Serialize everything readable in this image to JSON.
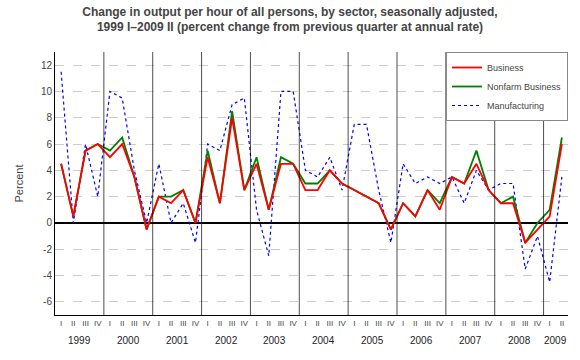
{
  "chart_data": {
    "type": "line",
    "title": "Change in output per hour of all persons, by sector, seasonally adjusted,\n1999 I–2009 II (percent change from previous quarter at annual rate)",
    "ylabel": "Percent",
    "categories": [
      "I",
      "II",
      "III",
      "IV",
      "I",
      "II",
      "III",
      "IV",
      "I",
      "II",
      "III",
      "IV",
      "I",
      "II",
      "III",
      "IV",
      "I",
      "II",
      "III",
      "IV",
      "I",
      "II",
      "III",
      "IV",
      "I",
      "II",
      "III",
      "IV",
      "I",
      "II",
      "III",
      "IV",
      "I",
      "II",
      "III",
      "IV",
      "I",
      "II",
      "III",
      "IV",
      "I",
      "II"
    ],
    "series": [
      {
        "name": "Business",
        "color": "#ff0000",
        "line_style": "solid",
        "values": [
          4.5,
          0.5,
          5.5,
          6.0,
          5.0,
          6.0,
          3.5,
          -0.5,
          2.0,
          1.5,
          2.5,
          0.0,
          5.0,
          1.5,
          8.0,
          2.5,
          4.5,
          1.0,
          4.5,
          4.5,
          2.5,
          2.5,
          4.0,
          3.0,
          2.5,
          2.0,
          1.5,
          -0.5,
          1.5,
          0.5,
          2.5,
          1.0,
          3.5,
          3.0,
          4.5,
          2.5,
          1.5,
          1.5,
          -1.5,
          -0.5,
          0.5,
          6.0
        ]
      },
      {
        "name": "Nonfarm Business",
        "color": "#008000",
        "line_style": "solid",
        "values": [
          4.5,
          0.5,
          5.5,
          6.0,
          5.5,
          6.5,
          3.5,
          -0.5,
          2.0,
          2.0,
          2.5,
          0.0,
          5.5,
          1.5,
          8.5,
          2.5,
          5.0,
          1.0,
          5.0,
          4.5,
          3.0,
          3.0,
          4.0,
          3.0,
          2.5,
          2.0,
          1.5,
          -0.5,
          1.5,
          0.5,
          2.5,
          1.5,
          3.5,
          3.0,
          5.5,
          2.5,
          1.5,
          2.0,
          -1.5,
          0.0,
          1.0,
          6.5
        ]
      },
      {
        "name": "Manufacturing",
        "color": "#0000ff",
        "line_style": "dotted",
        "values": [
          11.5,
          0.0,
          6.0,
          2.0,
          10.0,
          9.5,
          4.0,
          0.0,
          4.5,
          0.0,
          1.5,
          -1.5,
          6.0,
          5.5,
          9.0,
          9.5,
          1.0,
          -2.5,
          10.0,
          10.0,
          4.0,
          3.5,
          5.0,
          2.5,
          7.5,
          7.5,
          2.5,
          -1.5,
          4.5,
          3.0,
          3.5,
          3.0,
          3.5,
          1.5,
          4.0,
          2.5,
          3.0,
          3.0,
          -3.5,
          -1.0,
          -4.5,
          3.5
        ]
      }
    ],
    "ylim": [
      -7,
      13
    ],
    "yticks": [
      -6,
      -4,
      -2,
      0,
      2,
      4,
      6,
      8,
      10,
      12
    ],
    "grid": true,
    "legend": "upper right",
    "annotations": [
      {
        "text": "1999",
        "x": [
          0,
          3
        ]
      },
      {
        "text": "2000",
        "x": [
          4,
          7
        ]
      },
      {
        "text": "2001",
        "x": [
          8,
          11
        ]
      },
      {
        "text": "2002",
        "x": [
          12,
          15
        ]
      },
      {
        "text": "2003",
        "x": [
          16,
          19
        ]
      },
      {
        "text": "2004",
        "x": [
          20,
          23
        ]
      },
      {
        "text": "2005",
        "x": [
          24,
          27
        ]
      },
      {
        "text": "2006",
        "x": [
          28,
          31
        ]
      },
      {
        "text": "2007",
        "x": [
          32,
          35
        ]
      },
      {
        "text": "2008",
        "x": [
          36,
          39
        ]
      },
      {
        "text": "2009",
        "x": [
          40,
          41
        ]
      }
    ]
  }
}
